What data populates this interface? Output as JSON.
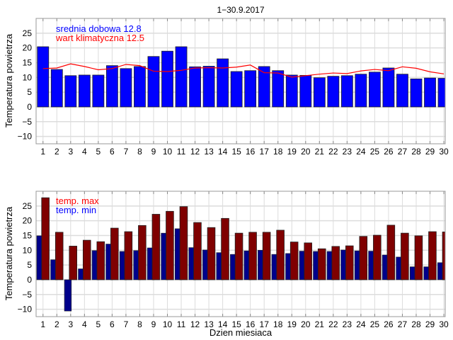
{
  "chart_data": [
    {
      "type": "bar",
      "title": "1−30.9.2017",
      "xlabel": "",
      "ylabel": "Temperatura powietrza",
      "ylim": [
        -12.5,
        30
      ],
      "xlim": [
        0.5,
        30.1
      ],
      "yticks": [
        -10,
        -5,
        0,
        5,
        10,
        15,
        20,
        25
      ],
      "grid": true,
      "legend_text": [
        "srednia dobowa 12.8",
        "wart klimatyczna 12.5"
      ],
      "legend_placement": "top-left",
      "x": [
        1,
        2,
        3,
        4,
        5,
        6,
        7,
        8,
        9,
        10,
        11,
        12,
        13,
        14,
        15,
        16,
        17,
        18,
        19,
        20,
        21,
        22,
        23,
        24,
        25,
        26,
        27,
        28,
        29,
        30
      ],
      "series": [
        {
          "name": "srednia dobowa",
          "type": "bar",
          "color": "#0000ff",
          "values": [
            20.4,
            12.7,
            10.6,
            10.8,
            10.8,
            14.0,
            13.0,
            13.7,
            17.1,
            18.9,
            20.4,
            13.6,
            13.8,
            16.3,
            12.0,
            12.3,
            13.7,
            12.3,
            10.8,
            10.7,
            9.9,
            10.4,
            10.6,
            11.1,
            11.8,
            13.2,
            11.1,
            9.5,
            9.8,
            9.7
          ]
        },
        {
          "name": "wart klimatyczna",
          "type": "line",
          "color": "#ff0000",
          "values": [
            13.0,
            13.2,
            14.6,
            13.7,
            12.6,
            13.0,
            14.4,
            14.0,
            12.1,
            12.0,
            12.4,
            13.2,
            13.3,
            13.2,
            13.5,
            14.2,
            11.6,
            11.5,
            10.1,
            10.6,
            11.1,
            11.5,
            11.3,
            12.2,
            12.7,
            12.3,
            13.6,
            13.1,
            11.9,
            11.2
          ]
        }
      ]
    },
    {
      "type": "bar",
      "title": "",
      "xlabel": "Dzien miesiaca",
      "ylabel": "Temperatura powietrza",
      "ylim": [
        -12.5,
        30
      ],
      "xlim": [
        0.5,
        30.1
      ],
      "yticks": [
        -10,
        -5,
        0,
        5,
        10,
        15,
        20,
        25
      ],
      "grid": true,
      "legend_text": [
        "temp. max",
        "temp. min"
      ],
      "legend_placement": "top-left",
      "x": [
        1,
        2,
        3,
        4,
        5,
        6,
        7,
        8,
        9,
        10,
        11,
        12,
        13,
        14,
        15,
        16,
        17,
        18,
        19,
        20,
        21,
        22,
        23,
        24,
        25,
        26,
        27,
        28,
        29,
        30
      ],
      "series": [
        {
          "name": "temp. min",
          "color": "#00008b",
          "values": [
            14.9,
            6.8,
            -10.6,
            3.7,
            9.9,
            12.1,
            9.6,
            9.9,
            10.8,
            15.8,
            17.3,
            10.9,
            10.1,
            9.2,
            8.6,
            9.8,
            10.0,
            8.6,
            8.9,
            9.7,
            9.6,
            9.6,
            10.1,
            9.8,
            9.7,
            8.4,
            7.7,
            4.4,
            4.4,
            5.8
          ]
        },
        {
          "name": "temp. max",
          "color": "#7f0000",
          "values": [
            27.8,
            16.1,
            11.4,
            13.4,
            12.9,
            17.5,
            16.3,
            18.4,
            22.2,
            23.2,
            24.8,
            19.4,
            17.7,
            20.8,
            15.8,
            16.1,
            16.1,
            16.8,
            12.8,
            12.5,
            10.5,
            11.3,
            11.5,
            14.7,
            15.1,
            18.5,
            15.8,
            14.9,
            16.3,
            16.2
          ]
        }
      ]
    }
  ]
}
